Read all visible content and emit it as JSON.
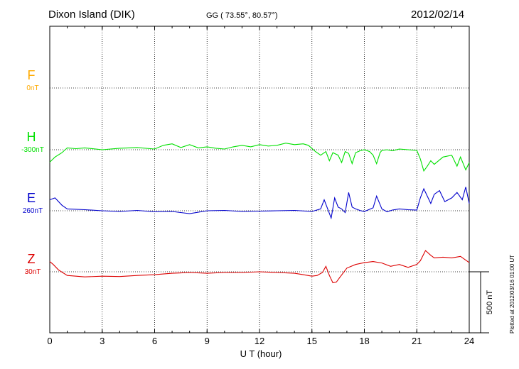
{
  "header": {
    "station": "Dixon Island (DIK)",
    "coords": "GG ( 73.55°,  80.57°)",
    "date": "2012/02/14",
    "plotted": "Plotted at 2012/03/16 01:00 UT"
  },
  "chart_data": {
    "type": "line",
    "xlabel": "U T (hour)",
    "xlim": [
      0,
      24
    ],
    "xticks": [
      "0",
      "3",
      "6",
      "9",
      "12",
      "15",
      "18",
      "21",
      "24"
    ],
    "scale_label": "500 nT",
    "grid": true,
    "colors": {
      "F": "#ffaa00",
      "H": "#00e000",
      "E": "#0000cc",
      "Z": "#dd0000"
    },
    "series": [
      {
        "name": "F",
        "baseline": "0nT",
        "points": []
      },
      {
        "name": "H",
        "baseline": "-300nT",
        "points": [
          [
            0,
            -34
          ],
          [
            0.3,
            -20
          ],
          [
            0.7,
            -8
          ],
          [
            1.0,
            5
          ],
          [
            1.5,
            3
          ],
          [
            2.0,
            5
          ],
          [
            3,
            0
          ],
          [
            4,
            4
          ],
          [
            5,
            6
          ],
          [
            6,
            2
          ],
          [
            6.5,
            12
          ],
          [
            7,
            16
          ],
          [
            7.5,
            6
          ],
          [
            8,
            14
          ],
          [
            8.5,
            5
          ],
          [
            9,
            8
          ],
          [
            9.5,
            4
          ],
          [
            10,
            2
          ],
          [
            10.5,
            8
          ],
          [
            11,
            12
          ],
          [
            11.5,
            8
          ],
          [
            12,
            14
          ],
          [
            12.5,
            10
          ],
          [
            13,
            12
          ],
          [
            13.5,
            18
          ],
          [
            14,
            14
          ],
          [
            14.5,
            16
          ],
          [
            14.8,
            12
          ],
          [
            15.2,
            -5
          ],
          [
            15.5,
            -15
          ],
          [
            15.8,
            -5
          ],
          [
            16.0,
            -30
          ],
          [
            16.2,
            -8
          ],
          [
            16.5,
            -15
          ],
          [
            16.7,
            -35
          ],
          [
            16.9,
            -5
          ],
          [
            17.1,
            -10
          ],
          [
            17.3,
            -38
          ],
          [
            17.5,
            -8
          ],
          [
            17.8,
            -2
          ],
          [
            18,
            0
          ],
          [
            18.3,
            -5
          ],
          [
            18.5,
            -15
          ],
          [
            18.7,
            -38
          ],
          [
            18.9,
            -8
          ],
          [
            19,
            -2
          ],
          [
            19.3,
            0
          ],
          [
            19.6,
            -3
          ],
          [
            20,
            2
          ],
          [
            20.5,
            0
          ],
          [
            21,
            -2
          ],
          [
            21.2,
            -25
          ],
          [
            21.4,
            -58
          ],
          [
            21.6,
            -45
          ],
          [
            21.8,
            -30
          ],
          [
            22,
            -40
          ],
          [
            22.5,
            -20
          ],
          [
            23,
            -15
          ],
          [
            23.3,
            -45
          ],
          [
            23.5,
            -20
          ],
          [
            23.8,
            -55
          ],
          [
            24,
            -35
          ]
        ]
      },
      {
        "name": "E",
        "baseline": "260nT",
        "points": [
          [
            0,
            30
          ],
          [
            0.3,
            35
          ],
          [
            0.7,
            15
          ],
          [
            1,
            5
          ],
          [
            2,
            3
          ],
          [
            3,
            0
          ],
          [
            4,
            -2
          ],
          [
            5,
            1
          ],
          [
            6,
            -3
          ],
          [
            7,
            -2
          ],
          [
            8,
            -8
          ],
          [
            9,
            0
          ],
          [
            10,
            1
          ],
          [
            11,
            -2
          ],
          [
            12,
            -1
          ],
          [
            13,
            0
          ],
          [
            14,
            1
          ],
          [
            15,
            -2
          ],
          [
            15.5,
            5
          ],
          [
            15.7,
            30
          ],
          [
            15.9,
            5
          ],
          [
            16.1,
            -20
          ],
          [
            16.3,
            35
          ],
          [
            16.5,
            10
          ],
          [
            16.7,
            5
          ],
          [
            16.9,
            -5
          ],
          [
            17.1,
            50
          ],
          [
            17.3,
            10
          ],
          [
            17.5,
            5
          ],
          [
            17.8,
            0
          ],
          [
            18,
            -2
          ],
          [
            18.5,
            8
          ],
          [
            18.7,
            40
          ],
          [
            19,
            5
          ],
          [
            19.3,
            -3
          ],
          [
            19.6,
            2
          ],
          [
            20,
            5
          ],
          [
            20.5,
            3
          ],
          [
            21,
            2
          ],
          [
            21.2,
            35
          ],
          [
            21.4,
            60
          ],
          [
            21.6,
            40
          ],
          [
            21.8,
            20
          ],
          [
            22,
            45
          ],
          [
            22.3,
            55
          ],
          [
            22.6,
            25
          ],
          [
            23,
            35
          ],
          [
            23.3,
            50
          ],
          [
            23.6,
            30
          ],
          [
            23.8,
            65
          ],
          [
            24,
            20
          ]
        ]
      },
      {
        "name": "Z",
        "baseline": "30nT",
        "points": [
          [
            0,
            28
          ],
          [
            0.2,
            20
          ],
          [
            0.5,
            5
          ],
          [
            1,
            -10
          ],
          [
            1.5,
            -12
          ],
          [
            2,
            -14
          ],
          [
            3,
            -12
          ],
          [
            4,
            -13
          ],
          [
            5,
            -10
          ],
          [
            6,
            -8
          ],
          [
            7,
            -4
          ],
          [
            8,
            -2
          ],
          [
            9,
            -4
          ],
          [
            10,
            -2
          ],
          [
            11,
            -2
          ],
          [
            12,
            0
          ],
          [
            13,
            -2
          ],
          [
            14,
            -4
          ],
          [
            14.5,
            -8
          ],
          [
            15,
            -12
          ],
          [
            15.3,
            -10
          ],
          [
            15.6,
            -2
          ],
          [
            15.8,
            15
          ],
          [
            16.0,
            -10
          ],
          [
            16.2,
            -30
          ],
          [
            16.4,
            -28
          ],
          [
            16.6,
            -15
          ],
          [
            17,
            10
          ],
          [
            17.5,
            20
          ],
          [
            18,
            25
          ],
          [
            18.5,
            28
          ],
          [
            19,
            24
          ],
          [
            19.5,
            15
          ],
          [
            20,
            20
          ],
          [
            20.5,
            12
          ],
          [
            21,
            20
          ],
          [
            21.2,
            30
          ],
          [
            21.5,
            58
          ],
          [
            21.8,
            45
          ],
          [
            22,
            38
          ],
          [
            22.5,
            40
          ],
          [
            23,
            38
          ],
          [
            23.5,
            42
          ],
          [
            24,
            25
          ]
        ]
      }
    ]
  }
}
